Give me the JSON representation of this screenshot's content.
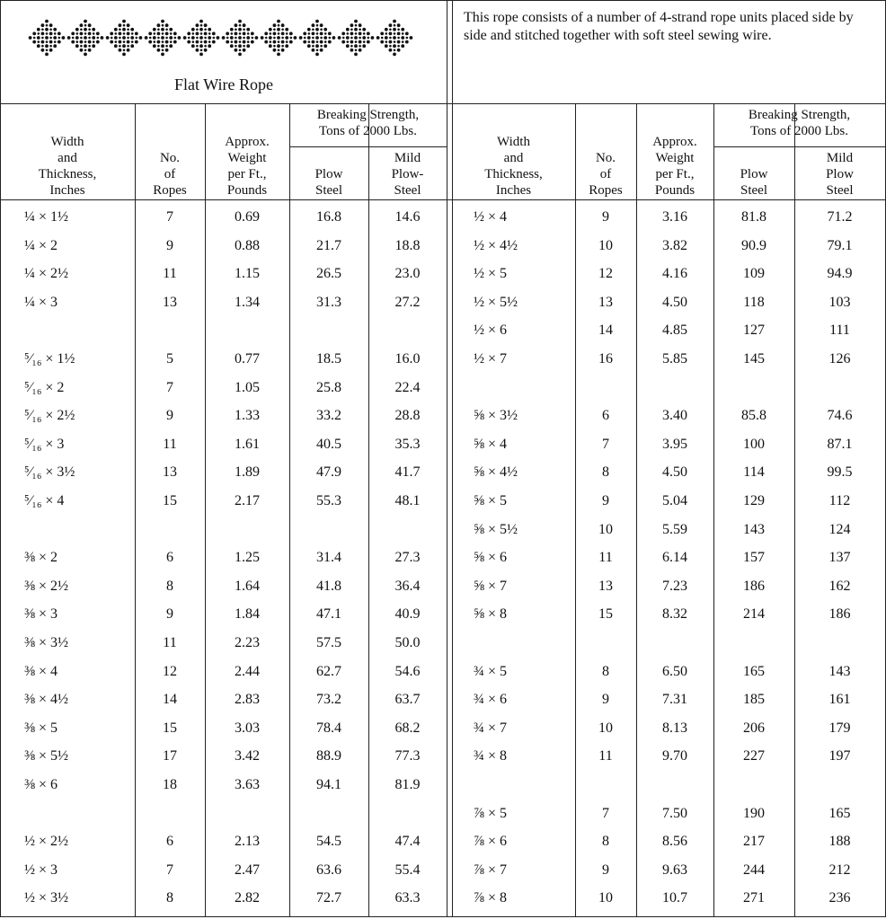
{
  "caption": "Flat Wire Rope",
  "description": "This rope consists of a number of 4-strand rope units placed side by side and stitched together with soft steel sewing wire.",
  "left": {
    "group_header": [
      "Breaking Strength,",
      "Tons of 2000 Lbs."
    ],
    "columns": [
      [
        "Width",
        "and",
        "Thickness,",
        "Inches"
      ],
      [
        "No.",
        "of",
        "Ropes"
      ],
      [
        "Approx.",
        "Weight",
        "per Ft.,",
        "Pounds"
      ],
      [
        "Plow",
        "Steel"
      ],
      [
        "Mild",
        "Plow-",
        "Steel"
      ]
    ],
    "rows": [
      [
        "¼ × 1½",
        "7",
        "0.69",
        "16.8",
        "14.6"
      ],
      [
        "¼ × 2",
        "9",
        "0.88",
        "21.7",
        "18.8"
      ],
      [
        "¼ × 2½",
        "11",
        "1.15",
        "26.5",
        "23.0"
      ],
      [
        "¼ × 3",
        "13",
        "1.34",
        "31.3",
        "27.2"
      ],
      null,
      [
        "⁵⁄₁₆ × 1½",
        "5",
        "0.77",
        "18.5",
        "16.0"
      ],
      [
        "⁵⁄₁₆ × 2",
        "7",
        "1.05",
        "25.8",
        "22.4"
      ],
      [
        "⁵⁄₁₆ × 2½",
        "9",
        "1.33",
        "33.2",
        "28.8"
      ],
      [
        "⁵⁄₁₆ × 3",
        "11",
        "1.61",
        "40.5",
        "35.3"
      ],
      [
        "⁵⁄₁₆ × 3½",
        "13",
        "1.89",
        "47.9",
        "41.7"
      ],
      [
        "⁵⁄₁₆ × 4",
        "15",
        "2.17",
        "55.3",
        "48.1"
      ],
      null,
      [
        "⅜ × 2",
        "6",
        "1.25",
        "31.4",
        "27.3"
      ],
      [
        "⅜ × 2½",
        "8",
        "1.64",
        "41.8",
        "36.4"
      ],
      [
        "⅜ × 3",
        "9",
        "1.84",
        "47.1",
        "40.9"
      ],
      [
        "⅜ × 3½",
        "11",
        "2.23",
        "57.5",
        "50.0"
      ],
      [
        "⅜ × 4",
        "12",
        "2.44",
        "62.7",
        "54.6"
      ],
      [
        "⅜ × 4½",
        "14",
        "2.83",
        "73.2",
        "63.7"
      ],
      [
        "⅜ × 5",
        "15",
        "3.03",
        "78.4",
        "68.2"
      ],
      [
        "⅜ × 5½",
        "17",
        "3.42",
        "88.9",
        "77.3"
      ],
      [
        "⅜ × 6",
        "18",
        "3.63",
        "94.1",
        "81.9"
      ],
      null,
      [
        "½ × 2½",
        "6",
        "2.13",
        "54.5",
        "47.4"
      ],
      [
        "½ × 3",
        "7",
        "2.47",
        "63.6",
        "55.4"
      ],
      [
        "½ × 3½",
        "8",
        "2.82",
        "72.7",
        "63.3"
      ]
    ]
  },
  "right": {
    "group_header": [
      "Breaking Strength,",
      "Tons of 2000 Lbs."
    ],
    "columns": [
      [
        "Width",
        "and",
        "Thickness,",
        "Inches"
      ],
      [
        "No.",
        "of",
        "Ropes"
      ],
      [
        "Approx.",
        "Weight",
        "per Ft.,",
        "Pounds"
      ],
      [
        "Plow",
        "Steel"
      ],
      [
        "Mild",
        "Plow",
        "Steel"
      ]
    ],
    "rows": [
      [
        "½ × 4",
        "9",
        "3.16",
        "81.8",
        "71.2"
      ],
      [
        "½ × 4½",
        "10",
        "3.82",
        "90.9",
        "79.1"
      ],
      [
        "½ × 5",
        "12",
        "4.16",
        "109",
        "94.9"
      ],
      [
        "½ × 5½",
        "13",
        "4.50",
        "118",
        "103"
      ],
      [
        "½ × 6",
        "14",
        "4.85",
        "127",
        "111"
      ],
      [
        "½ × 7",
        "16",
        "5.85",
        "145",
        "126"
      ],
      null,
      [
        "⅝ × 3½",
        "6",
        "3.40",
        "85.8",
        "74.6"
      ],
      [
        "⅝ × 4",
        "7",
        "3.95",
        "100",
        "87.1"
      ],
      [
        "⅝ × 4½",
        "8",
        "4.50",
        "114",
        "99.5"
      ],
      [
        "⅝ × 5",
        "9",
        "5.04",
        "129",
        "112"
      ],
      [
        "⅝ × 5½",
        "10",
        "5.59",
        "143",
        "124"
      ],
      [
        "⅝ × 6",
        "11",
        "6.14",
        "157",
        "137"
      ],
      [
        "⅝ × 7",
        "13",
        "7.23",
        "186",
        "162"
      ],
      [
        "⅝ × 8",
        "15",
        "8.32",
        "214",
        "186"
      ],
      null,
      [
        "¾ × 5",
        "8",
        "6.50",
        "165",
        "143"
      ],
      [
        "¾ × 6",
        "9",
        "7.31",
        "185",
        "161"
      ],
      [
        "¾ × 7",
        "10",
        "8.13",
        "206",
        "179"
      ],
      [
        "¾ × 8",
        "11",
        "9.70",
        "227",
        "197"
      ],
      null,
      [
        "⅞ × 5",
        "7",
        "7.50",
        "190",
        "165"
      ],
      [
        "⅞ × 6",
        "8",
        "8.56",
        "217",
        "188"
      ],
      [
        "⅞ × 7",
        "9",
        "9.63",
        "244",
        "212"
      ],
      [
        "⅞ × 8",
        "10",
        "10.7",
        "271",
        "236"
      ]
    ]
  }
}
